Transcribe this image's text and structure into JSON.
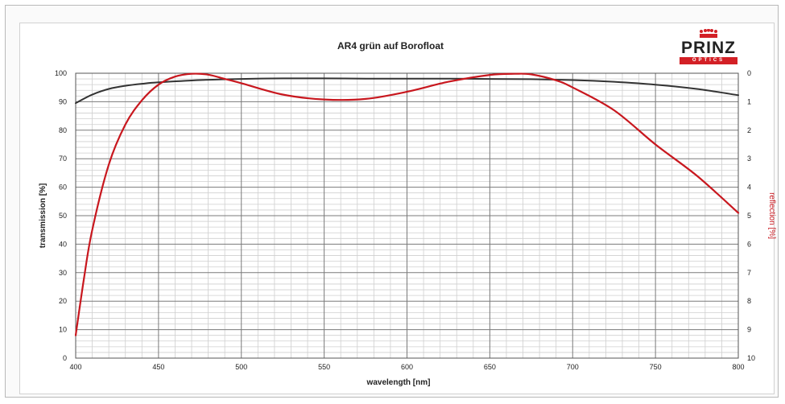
{
  "chart_data": {
    "type": "line",
    "title": "AR4 grün auf Borofloat",
    "xlabel": "wavelength [nm]",
    "ylabel_left": "transmission [%]",
    "ylabel_right": "reflection [%]",
    "xlim": [
      400,
      800
    ],
    "ylim_left": [
      0,
      100
    ],
    "ylim_right": [
      0,
      10
    ],
    "x_ticks": [
      "400",
      "450",
      "500",
      "550",
      "600",
      "650",
      "700",
      "750",
      "800"
    ],
    "y_ticks_left": [
      "0",
      "10",
      "20",
      "30",
      "40",
      "50",
      "60",
      "70",
      "80",
      "90",
      "100"
    ],
    "y_ticks_right": [
      "0",
      "1",
      "2",
      "3",
      "4",
      "5",
      "6",
      "7",
      "8",
      "9",
      "10"
    ],
    "grid": true,
    "series": [
      {
        "axis": "left",
        "color": "#333333",
        "x": [
          400,
          410,
          420,
          430,
          440,
          450,
          475,
          500,
          525,
          550,
          575,
          600,
          625,
          650,
          675,
          700,
          725,
          750,
          775,
          800
        ],
        "y": [
          89.5,
          92.5,
          94.5,
          95.6,
          96.3,
          96.8,
          97.6,
          98.0,
          98.2,
          98.2,
          98.1,
          98.1,
          98.1,
          98.0,
          97.9,
          97.6,
          97.0,
          96.0,
          94.5,
          92.3
        ]
      },
      {
        "axis": "right",
        "color": "#c8171e",
        "x": [
          400,
          405,
          410,
          420,
          430,
          440,
          450,
          460,
          470,
          480,
          490,
          500,
          525,
          550,
          575,
          600,
          625,
          650,
          665,
          675,
          690,
          700,
          725,
          750,
          775,
          800
        ],
        "y": [
          9.2,
          7.2,
          5.5,
          3.2,
          1.8,
          0.95,
          0.4,
          0.12,
          0.02,
          0.05,
          0.2,
          0.35,
          0.75,
          0.92,
          0.9,
          0.65,
          0.3,
          0.06,
          0.02,
          0.04,
          0.25,
          0.5,
          1.3,
          2.5,
          3.6,
          4.9
        ]
      }
    ]
  },
  "logo": {
    "word": "PRINZ",
    "sub": "OPTICS",
    "color": "#d32026"
  }
}
